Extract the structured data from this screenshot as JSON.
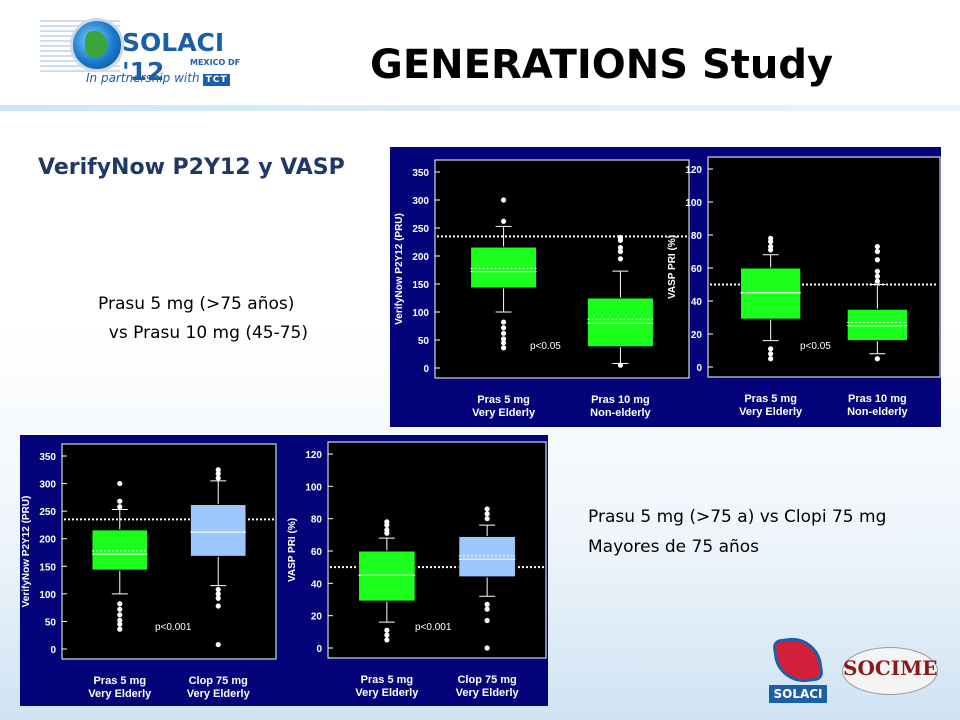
{
  "header": {
    "logo_text": "SOLACI '12",
    "logo_sub": "MEXICO DF",
    "logo_partner": "In partnership with",
    "logo_partner_brand": "TCT",
    "title": "GENERATIONS Study"
  },
  "subtitle": "VerifyNow P2Y12 y VASP",
  "caption_top": "Prasu 5 mg (>75 años)\n  vs Prasu 10 mg (45-75)",
  "caption_bottom": "Prasu 5 mg (>75 a) vs Clopi 75 mg\nMayores de 75 años",
  "footer": {
    "solaci_badge": "SOLACI",
    "socime_badge": "SOCIME"
  },
  "colors": {
    "green_box": "#1cff1c",
    "blue_box": "#9cc7ff",
    "panel_bg": "#04047a",
    "plot_bg": "#000000"
  },
  "chart_data": [
    {
      "type": "box",
      "ylabel": "VerifyNow P2Y12 (PRU)",
      "ylim": [
        0,
        350
      ],
      "yticks": [
        0,
        50,
        100,
        150,
        200,
        250,
        300,
        350
      ],
      "reference_line": 235,
      "pvalue": "p<0.05",
      "categories": [
        {
          "label": [
            "Pras 5 mg",
            "Very Elderly"
          ],
          "color": "green",
          "q1": 143,
          "median": 172,
          "mean": 178,
          "q3": 216,
          "whisker_low": 100,
          "whisker_high": 253,
          "outliers": [
            300,
            262,
            82,
            72,
            62,
            52,
            45,
            36
          ]
        },
        {
          "label": [
            "Pras 10 mg",
            "Non-elderly"
          ],
          "color": "green",
          "q1": 38,
          "median": 80,
          "mean": 87,
          "q3": 125,
          "whisker_low": 8,
          "whisker_high": 173,
          "outliers": [
            233,
            228,
            215,
            208,
            195,
            5
          ]
        }
      ]
    },
    {
      "type": "box",
      "ylabel": "VASP PRI (%)",
      "ylim": [
        0,
        120
      ],
      "yticks": [
        0,
        20,
        40,
        60,
        80,
        100,
        120
      ],
      "reference_line": 50,
      "pvalue": "p<0.05",
      "categories": [
        {
          "label": [
            "Pras 5 mg",
            "Very Elderly"
          ],
          "color": "green",
          "q1": 29,
          "median": 45,
          "mean": 45,
          "q3": 60,
          "whisker_low": 16,
          "whisker_high": 68,
          "outliers": [
            78,
            76,
            73,
            71,
            11,
            8,
            5
          ]
        },
        {
          "label": [
            "Pras 10 mg",
            "Non-elderly"
          ],
          "color": "green",
          "q1": 16,
          "median": 25,
          "mean": 27,
          "q3": 35,
          "whisker_low": 8,
          "whisker_high": 50,
          "outliers": [
            73,
            70,
            65,
            58,
            55,
            52,
            5
          ]
        }
      ]
    },
    {
      "type": "box",
      "ylabel": "VerifyNow P2Y12 (PRU)",
      "ylim": [
        0,
        350
      ],
      "yticks": [
        0,
        50,
        100,
        150,
        200,
        250,
        300,
        350
      ],
      "reference_line": 235,
      "pvalue": "p<0.001",
      "categories": [
        {
          "label": [
            "Pras 5 mg",
            "Very Elderly"
          ],
          "color": "green",
          "q1": 143,
          "median": 172,
          "mean": 178,
          "q3": 216,
          "whisker_low": 100,
          "whisker_high": 253,
          "outliers": [
            300,
            268,
            258,
            82,
            72,
            62,
            52,
            45,
            36
          ]
        },
        {
          "label": [
            "Clop 75 mg",
            "Very Elderly"
          ],
          "color": "blue",
          "q1": 168,
          "median": 212,
          "mean": 212,
          "q3": 262,
          "whisker_low": 115,
          "whisker_high": 305,
          "outliers": [
            325,
            318,
            310,
            108,
            100,
            92,
            78,
            8
          ]
        }
      ]
    },
    {
      "type": "box",
      "ylabel": "VASP PRI (%)",
      "ylim": [
        0,
        120
      ],
      "yticks": [
        0,
        20,
        40,
        60,
        80,
        100,
        120
      ],
      "reference_line": 50,
      "pvalue": "p<0.001",
      "categories": [
        {
          "label": [
            "Pras 5 mg",
            "Very Elderly"
          ],
          "color": "green",
          "q1": 29,
          "median": 45,
          "mean": 45,
          "q3": 60,
          "whisker_low": 16,
          "whisker_high": 68,
          "outliers": [
            78,
            76,
            73,
            71,
            11,
            8,
            5
          ]
        },
        {
          "label": [
            "Clop 75 mg",
            "Very Elderly"
          ],
          "color": "blue",
          "q1": 44,
          "median": 55,
          "mean": 57,
          "q3": 69,
          "whisker_low": 32,
          "whisker_high": 76,
          "outliers": [
            86,
            83,
            80,
            27,
            24,
            17,
            0
          ]
        }
      ]
    }
  ]
}
